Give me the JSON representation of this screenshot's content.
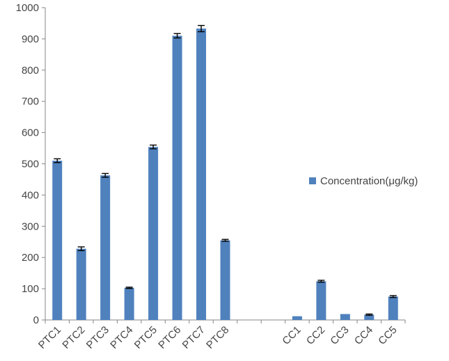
{
  "chart_data": {
    "type": "bar",
    "categories": [
      "PTC1",
      "PTC2",
      "PTC3",
      "PTC4",
      "PTC5",
      "PTC6",
      "PTC7",
      "PTC8",
      "",
      "",
      "CC1",
      "CC2",
      "CC3",
      "CC4",
      "CC5"
    ],
    "series": [
      {
        "name": "Concentration(μg/kg)",
        "values": [
          510,
          228,
          463,
          103,
          554,
          910,
          933,
          255,
          null,
          null,
          12,
          124,
          19,
          17,
          75
        ],
        "errors": [
          6,
          6,
          6,
          2,
          6,
          7,
          10,
          3,
          null,
          null,
          0,
          3,
          0,
          2,
          3
        ],
        "color": "#4F81BD"
      }
    ],
    "ylim": [
      0,
      1000
    ],
    "yticks": [
      0,
      100,
      200,
      300,
      400,
      500,
      600,
      700,
      800,
      900,
      1000
    ],
    "grid": false,
    "legend": "right",
    "error_bars": true
  }
}
